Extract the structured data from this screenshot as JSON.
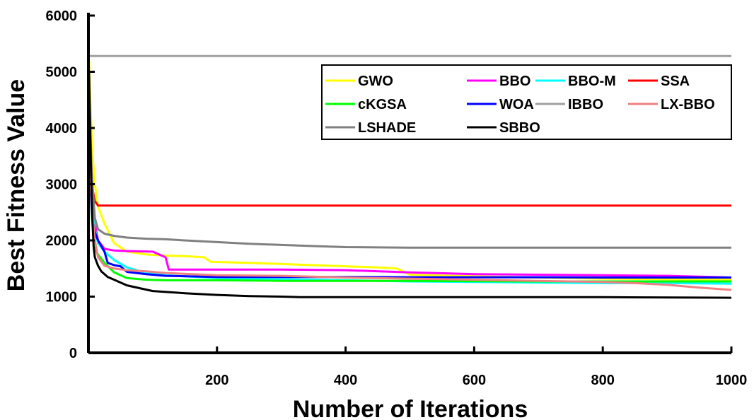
{
  "chart_data": {
    "type": "line",
    "title": "",
    "xlabel": "Number of Iterations",
    "ylabel": "Best Fitness Value",
    "xlim": [
      0,
      1000
    ],
    "ylim": [
      0,
      6000
    ],
    "xticks": [
      "200",
      "400",
      "600",
      "800",
      "1000"
    ],
    "yticks": [
      "0",
      "1000",
      "2000",
      "3000",
      "4000",
      "5000",
      "6000"
    ],
    "grid": false,
    "legend_position": "top-right",
    "series": [
      {
        "name": "GWO",
        "color": "#ffff00",
        "x": [
          1,
          3,
          6,
          10,
          15,
          25,
          40,
          60,
          90,
          120,
          150,
          180,
          190,
          250,
          300,
          350,
          400,
          450,
          480,
          500,
          600,
          700,
          800,
          900,
          1000
        ],
        "y": [
          5200,
          4500,
          3600,
          3000,
          2600,
          2300,
          1950,
          1800,
          1750,
          1730,
          1720,
          1700,
          1620,
          1600,
          1580,
          1560,
          1540,
          1520,
          1500,
          1390,
          1360,
          1340,
          1320,
          1310,
          1300
        ]
      },
      {
        "name": "BBO",
        "color": "#ff00ff",
        "x": [
          1,
          3,
          6,
          10,
          15,
          25,
          40,
          60,
          100,
          120,
          125,
          200,
          300,
          400,
          500,
          600,
          700,
          800,
          900,
          1000
        ],
        "y": [
          4800,
          3800,
          2900,
          2300,
          2000,
          1850,
          1820,
          1810,
          1800,
          1700,
          1480,
          1480,
          1480,
          1470,
          1430,
          1400,
          1390,
          1380,
          1370,
          1340
        ]
      },
      {
        "name": "BBO-M",
        "color": "#00ffff",
        "x": [
          1,
          3,
          6,
          10,
          15,
          25,
          40,
          60,
          90,
          120,
          200,
          300,
          400,
          500,
          600,
          700,
          800,
          900,
          1000
        ],
        "y": [
          4500,
          3500,
          2700,
          2200,
          1950,
          1800,
          1650,
          1520,
          1420,
          1380,
          1330,
          1310,
          1290,
          1270,
          1260,
          1250,
          1240,
          1240,
          1230
        ]
      },
      {
        "name": "SSA",
        "color": "#ff0000",
        "x": [
          1,
          5,
          10,
          15,
          1000
        ],
        "y": [
          3300,
          3000,
          2700,
          2620,
          2620
        ]
      },
      {
        "name": "cKGSA",
        "color": "#00ff00",
        "x": [
          1,
          3,
          6,
          10,
          15,
          25,
          40,
          60,
          90,
          120,
          200,
          300,
          400,
          500,
          600,
          700,
          800,
          900,
          1000
        ],
        "y": [
          4200,
          3100,
          2300,
          1850,
          1750,
          1600,
          1430,
          1330,
          1300,
          1290,
          1290,
          1280,
          1280,
          1280,
          1275,
          1270,
          1270,
          1270,
          1270
        ]
      },
      {
        "name": "WOA",
        "color": "#0000ff",
        "x": [
          1,
          3,
          6,
          10,
          15,
          25,
          30,
          40,
          50,
          60,
          90,
          120,
          200,
          300,
          400,
          500,
          600,
          700,
          800,
          900,
          1000
        ],
        "y": [
          4000,
          3000,
          2400,
          2150,
          2000,
          1800,
          1600,
          1560,
          1540,
          1440,
          1400,
          1370,
          1350,
          1350,
          1350,
          1345,
          1345,
          1345,
          1340,
          1340,
          1340
        ]
      },
      {
        "name": "IBBO",
        "color": "#a0a0a0",
        "x": [
          1,
          1000
        ],
        "y": [
          5280,
          5280
        ]
      },
      {
        "name": "LX-BBO",
        "color": "#f08080",
        "x": [
          1,
          3,
          6,
          10,
          15,
          25,
          40,
          60,
          90,
          120,
          200,
          300,
          400,
          500,
          600,
          700,
          800,
          850,
          900,
          950,
          1000
        ],
        "y": [
          3800,
          3100,
          2500,
          2000,
          1700,
          1550,
          1500,
          1470,
          1450,
          1420,
          1380,
          1370,
          1340,
          1320,
          1300,
          1280,
          1260,
          1240,
          1210,
          1160,
          1120
        ]
      },
      {
        "name": "LSHADE",
        "color": "#808080",
        "x": [
          1,
          5,
          10,
          15,
          25,
          40,
          60,
          90,
          120,
          150,
          200,
          250,
          300,
          350,
          400,
          450,
          500,
          600,
          700,
          800,
          900,
          1000
        ],
        "y": [
          5000,
          3200,
          2400,
          2200,
          2120,
          2080,
          2050,
          2030,
          2020,
          2000,
          1970,
          1940,
          1920,
          1900,
          1880,
          1875,
          1870,
          1870,
          1870,
          1870,
          1870,
          1870
        ]
      },
      {
        "name": "SBBO",
        "color": "#000000",
        "x": [
          1,
          2,
          4,
          6,
          8,
          10,
          15,
          20,
          30,
          40,
          60,
          80,
          100,
          150,
          200,
          250,
          300,
          330,
          400,
          600,
          800,
          1000
        ],
        "y": [
          5000,
          4300,
          3300,
          2400,
          1900,
          1700,
          1550,
          1450,
          1350,
          1300,
          1200,
          1150,
          1100,
          1060,
          1030,
          1010,
          1000,
          990,
          990,
          990,
          990,
          980
        ]
      }
    ]
  }
}
